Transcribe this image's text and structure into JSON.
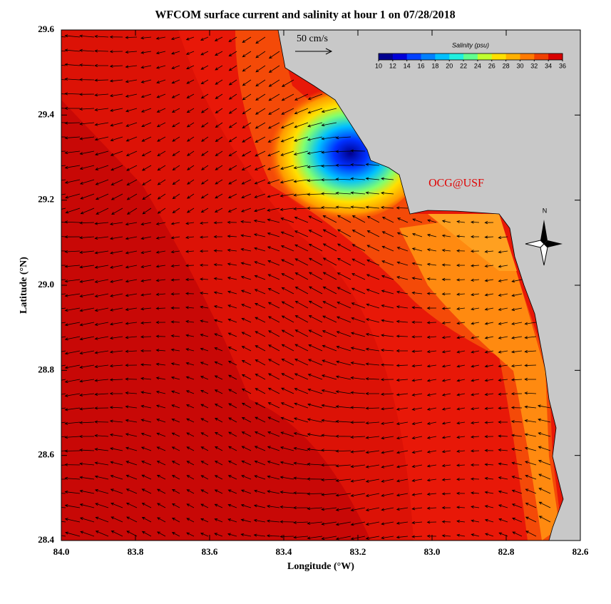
{
  "chart_data": {
    "type": "map",
    "title": "WFCOM surface current and salinity at hour 1 on 07/28/2018",
    "x_label": "Longitude (°W)",
    "y_label": "Latitude (°N)",
    "xlim": [
      84.0,
      82.6
    ],
    "xticks": [
      {
        "value": 84.0,
        "label": "84.0"
      },
      83.8,
      83.6,
      83.4,
      83.2,
      {
        "value": 83.0,
        "label": "83.0"
      },
      82.8,
      82.6
    ],
    "ylim": [
      28.4,
      29.6
    ],
    "yticks": [
      28.4,
      28.6,
      28.8,
      {
        "value": 29.0,
        "label": "29.0"
      },
      29.2,
      29.4,
      29.6
    ],
    "colorbar": {
      "label": "Salinity (psu)",
      "lim": [
        10,
        36
      ],
      "ticks": [
        10,
        12,
        14,
        16,
        18,
        20,
        22,
        24,
        26,
        28,
        30,
        32,
        34,
        36
      ],
      "colors": [
        "#00008f",
        "#0000d8",
        "#0040ff",
        "#0080ff",
        "#00c0ff",
        "#20f0e0",
        "#60ff90",
        "#c0ff30",
        "#ffe000",
        "#ffb000",
        "#ff7a00",
        "#f04000",
        "#d80000"
      ]
    },
    "scale_label": "50 cm/s",
    "annotation": "OCG@USF",
    "north_label": "N"
  }
}
